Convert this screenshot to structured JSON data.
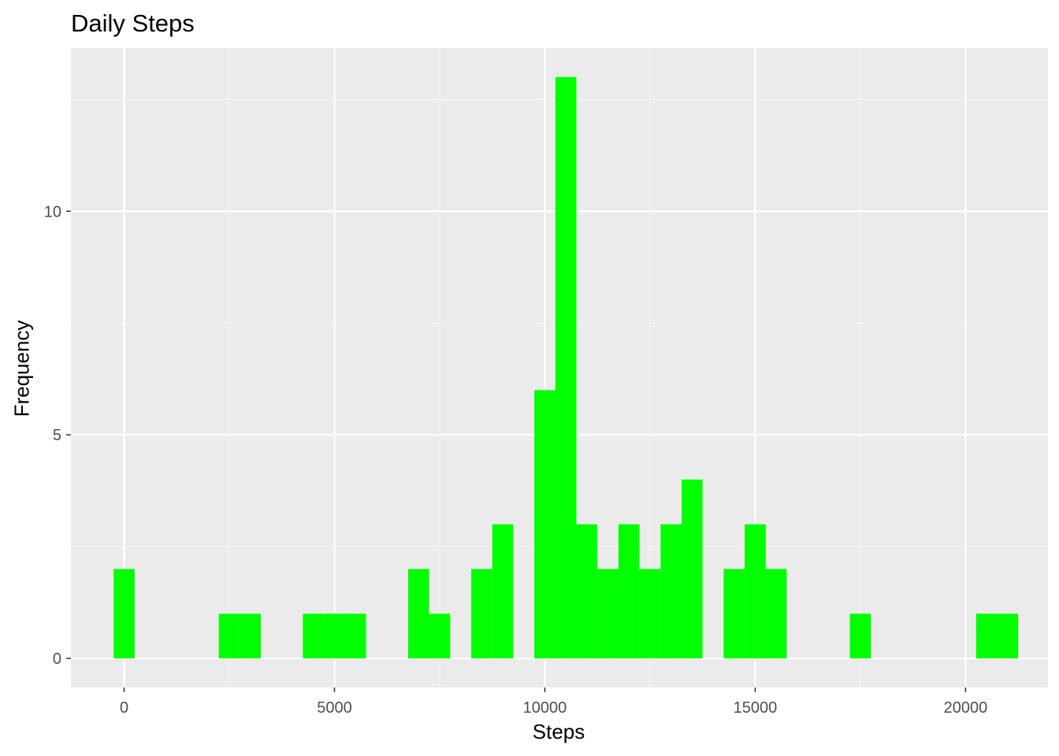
{
  "chart_data": {
    "type": "bar",
    "title": "Daily Steps",
    "xlabel": "Steps",
    "ylabel": "Frequency",
    "xlim": [
      -1265,
      21959
    ],
    "ylim": [
      -0.65,
      13.65
    ],
    "x_ticks": [
      0,
      5000,
      10000,
      15000,
      20000
    ],
    "x_tick_labels": [
      "0",
      "5000",
      "10000",
      "15000",
      "20000"
    ],
    "y_ticks": [
      0,
      5,
      10
    ],
    "y_tick_labels": [
      "0",
      "5",
      "10"
    ],
    "grid": true,
    "bin_width": 500,
    "bins": [
      {
        "x": 0,
        "count": 2
      },
      {
        "x": 2500,
        "count": 1
      },
      {
        "x": 3000,
        "count": 1
      },
      {
        "x": 4500,
        "count": 1
      },
      {
        "x": 5000,
        "count": 1
      },
      {
        "x": 5500,
        "count": 1
      },
      {
        "x": 7000,
        "count": 2
      },
      {
        "x": 7500,
        "count": 1
      },
      {
        "x": 8500,
        "count": 2
      },
      {
        "x": 9000,
        "count": 3
      },
      {
        "x": 10000,
        "count": 6
      },
      {
        "x": 10500,
        "count": 13
      },
      {
        "x": 11000,
        "count": 3
      },
      {
        "x": 11500,
        "count": 2
      },
      {
        "x": 12000,
        "count": 3
      },
      {
        "x": 12500,
        "count": 2
      },
      {
        "x": 13000,
        "count": 3
      },
      {
        "x": 13500,
        "count": 4
      },
      {
        "x": 14500,
        "count": 2
      },
      {
        "x": 15000,
        "count": 3
      },
      {
        "x": 15500,
        "count": 2
      },
      {
        "x": 17500,
        "count": 1
      },
      {
        "x": 20500,
        "count": 1
      },
      {
        "x": 21000,
        "count": 1
      }
    ],
    "colors": {
      "fill": "#00ff00",
      "panel": "#ebebeb",
      "grid_major": "#ffffff",
      "grid_minor": "#f5f5f5",
      "tick_text": "#4d4d4d",
      "tick_mark": "#333333"
    }
  }
}
